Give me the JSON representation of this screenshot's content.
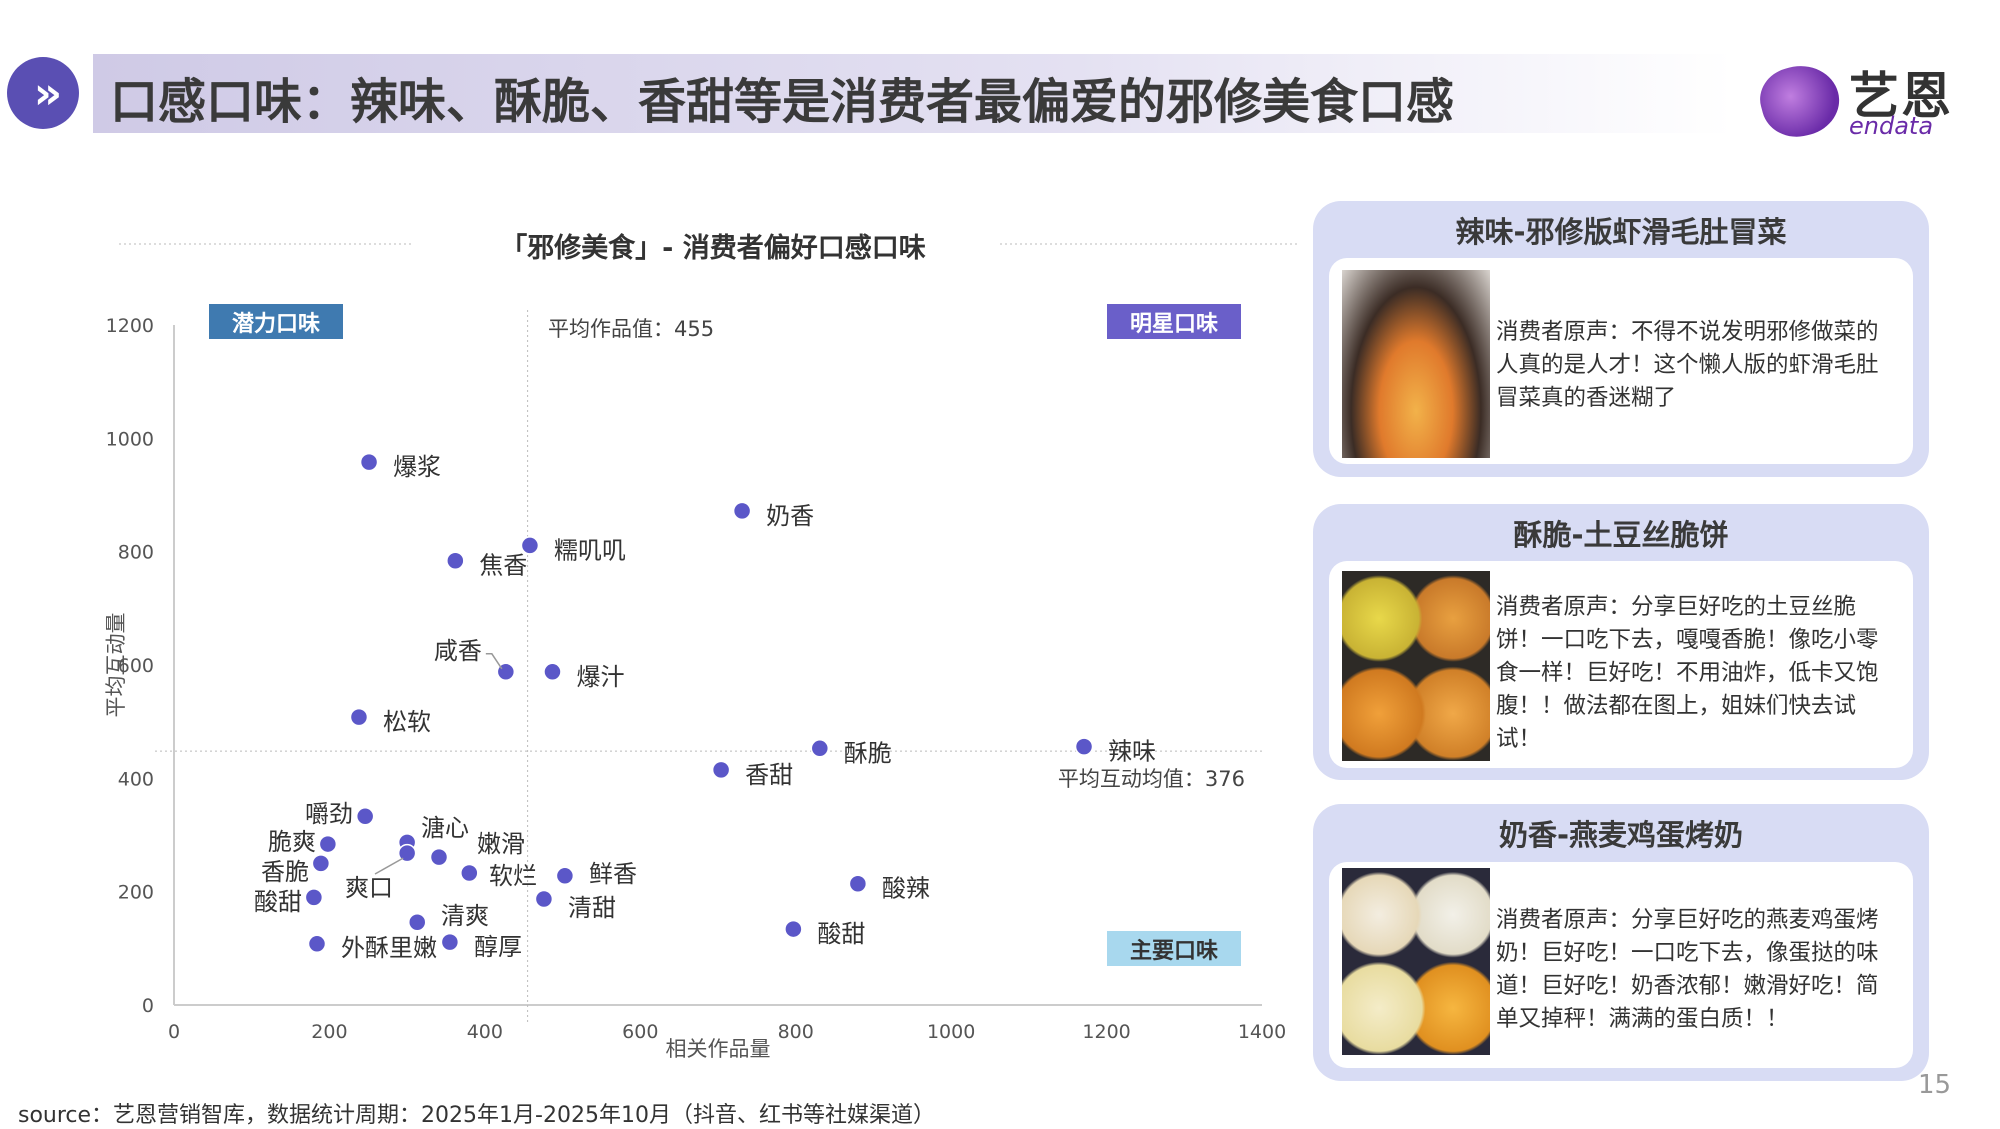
{
  "header": {
    "title": "口感口味：辣味、酥脆、香甜等是消费者最偏爱的邪修美食口感",
    "logo_cn": "艺恩",
    "logo_en": "endata"
  },
  "chart_data": {
    "type": "scatter",
    "title": "「邪修美食」- 消费者偏好口感口味",
    "xlabel": "相关作品量",
    "ylabel": "平均互动量",
    "xlim": [
      0,
      1400
    ],
    "ylim": [
      0,
      1200
    ],
    "xticks": [
      0,
      200,
      400,
      600,
      800,
      1000,
      1200,
      1400
    ],
    "yticks": [
      0,
      200,
      400,
      600,
      800,
      1000,
      1200
    ],
    "avg_x": 455,
    "avg_y": 376,
    "avg_x_label": "平均作品值：455",
    "avg_y_label": "平均互动均值：376",
    "quadrants": {
      "potential": "潜力口味",
      "star": "明星口味",
      "main": "主要口味"
    },
    "point_color": "#5b57c8",
    "points": [
      {
        "name": "爆浆",
        "x": 251,
        "y": 958
      },
      {
        "name": "奶香",
        "x": 731,
        "y": 872
      },
      {
        "name": "糯叽叽",
        "x": 458,
        "y": 811
      },
      {
        "name": "焦香",
        "x": 362,
        "y": 784
      },
      {
        "name": "咸香",
        "x": 427,
        "y": 588
      },
      {
        "name": "爆汁",
        "x": 487,
        "y": 588
      },
      {
        "name": "松软",
        "x": 238,
        "y": 508
      },
      {
        "name": "酥脆",
        "x": 831,
        "y": 453
      },
      {
        "name": "辣味",
        "x": 1171,
        "y": 456
      },
      {
        "name": "香甜",
        "x": 704,
        "y": 415
      },
      {
        "name": "嚼劲",
        "x": 246,
        "y": 333
      },
      {
        "name": "脆爽",
        "x": 198,
        "y": 284
      },
      {
        "name": "溏心",
        "x": 300,
        "y": 287
      },
      {
        "name": "爽口",
        "x": 300,
        "y": 268
      },
      {
        "name": "香脆",
        "x": 189,
        "y": 250
      },
      {
        "name": "嫩滑",
        "x": 341,
        "y": 261
      },
      {
        "name": "软烂",
        "x": 380,
        "y": 233
      },
      {
        "name": "鲜香",
        "x": 503,
        "y": 228
      },
      {
        "name": "酸辣",
        "x": 880,
        "y": 214
      },
      {
        "name": "酸甜",
        "x": 180,
        "y": 190
      },
      {
        "name": "清甜",
        "x": 476,
        "y": 187
      },
      {
        "name": "清爽",
        "x": 313,
        "y": 146
      },
      {
        "name": "酸甜",
        "x": 797,
        "y": 134
      },
      {
        "name": "醇厚",
        "x": 355,
        "y": 111
      },
      {
        "name": "外酥里嫩",
        "x": 184,
        "y": 108
      }
    ]
  },
  "panels": [
    {
      "title": "辣味-邪修版虾滑毛肚冒菜",
      "text": "消费者原声：不得不说发明邪修做菜的人真的是人才！这个懒人版的虾滑毛肚冒菜真的香迷糊了"
    },
    {
      "title": "酥脆-土豆丝脆饼",
      "text": "消费者原声：分享巨好吃的土豆丝脆饼！一口吃下去，嘎嘎香脆！像吃小零食一样！巨好吃！不用油炸，低卡又饱腹！！做法都在图上，姐妹们快去试试！"
    },
    {
      "title": "奶香-燕麦鸡蛋烤奶",
      "text": "消费者原声：分享巨好吃的燕麦鸡蛋烤奶！巨好吃！一口吃下去，像蛋挞的味道！巨好吃！奶香浓郁！嫩滑好吃！简单又掉秤！满满的蛋白质！！"
    }
  ],
  "footer": {
    "source": "source：艺恩营销智库，数据统计周期：2025年1月-2025年10月（抖音、红书等社媒渠道）",
    "page": "15"
  }
}
